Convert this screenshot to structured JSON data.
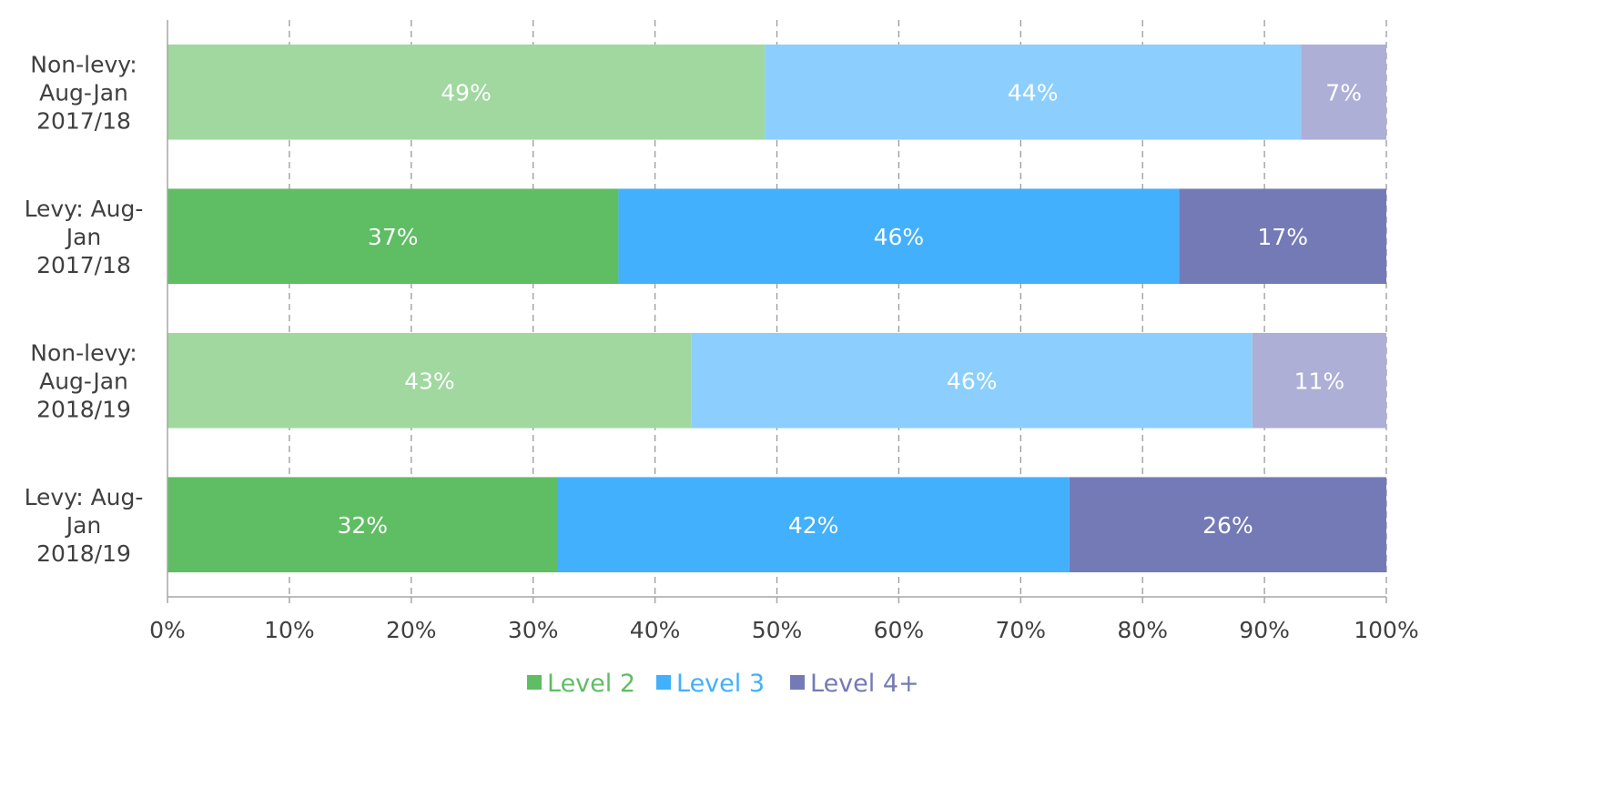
{
  "chart_data": {
    "type": "bar",
    "orientation": "horizontal",
    "stacked": true,
    "categories": [
      [
        "Non-levy:",
        "Aug-Jan",
        "2017/18"
      ],
      [
        "Levy: Aug-",
        "Jan",
        "2017/18"
      ],
      [
        "Non-levy:",
        "Aug-Jan",
        "2018/19"
      ],
      [
        "Levy: Aug-",
        "Jan",
        "2018/19"
      ]
    ],
    "series": [
      {
        "name": "Level 2",
        "values": [
          49,
          37,
          43,
          32
        ],
        "data_labels": [
          "49%",
          "37%",
          "43%",
          "32%"
        ],
        "color": "#5fbd63",
        "row_colors": [
          "#a0d89f",
          "#5fbd63",
          "#a0d89f",
          "#5fbd63"
        ]
      },
      {
        "name": "Level 3",
        "values": [
          44,
          46,
          46,
          42
        ],
        "data_labels": [
          "44%",
          "46%",
          "46%",
          "42%"
        ],
        "color": "#42b0fc",
        "row_colors": [
          "#8ccffe",
          "#42b0fc",
          "#8ccffe",
          "#42b0fc"
        ]
      },
      {
        "name": "Level 4+",
        "values": [
          7,
          17,
          11,
          26
        ],
        "data_labels": [
          "7%",
          "17%",
          "11%",
          "26%"
        ],
        "color": "#747ab6",
        "row_colors": [
          "#adafd6",
          "#747ab6",
          "#adafd6",
          "#747ab6"
        ]
      }
    ],
    "x_ticks": [
      "0%",
      "10%",
      "20%",
      "30%",
      "40%",
      "50%",
      "60%",
      "70%",
      "80%",
      "90%",
      "100%"
    ],
    "xlim": [
      0,
      100
    ],
    "grid": true,
    "legend_position": "bottom",
    "title": "",
    "xlabel": "",
    "ylabel": ""
  }
}
